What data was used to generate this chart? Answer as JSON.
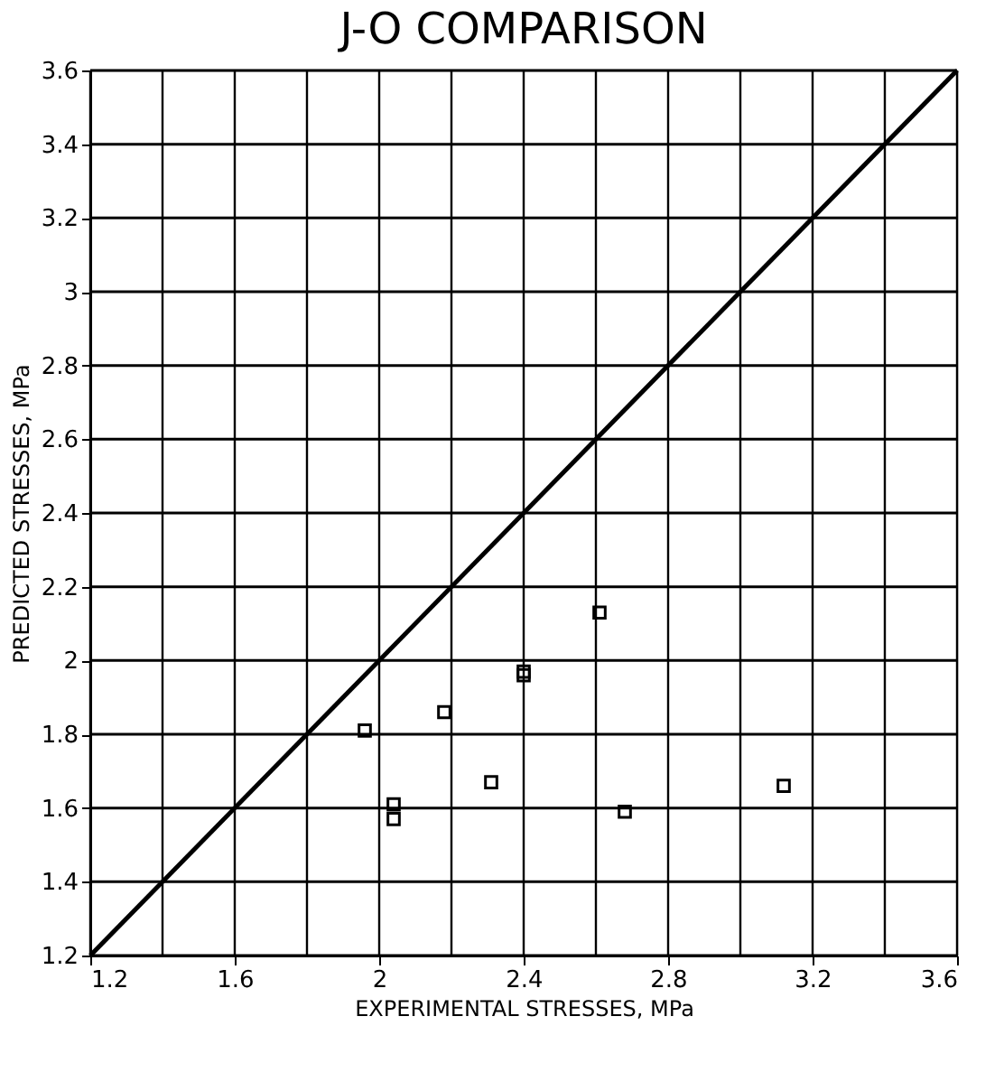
{
  "chart_data": {
    "type": "scatter",
    "title": "J-O COMPARISON",
    "xlabel": "EXPERIMENTAL STRESSES, MPa",
    "ylabel": "PREDICTED STRESSES, MPa",
    "xlim": [
      1.2,
      3.6
    ],
    "ylim": [
      1.2,
      3.6
    ],
    "xticks": [
      1.2,
      1.6,
      2,
      2.4,
      2.8,
      3.2,
      3.6
    ],
    "yticks": [
      1.2,
      1.4,
      1.6,
      1.8,
      2,
      2.2,
      2.4,
      2.6,
      2.8,
      3,
      3.2,
      3.4,
      3.6
    ],
    "grid": true,
    "marker": "square",
    "series": [
      {
        "color": "#000000",
        "x": [
          1.96,
          2.04,
          2.04,
          2.18,
          2.31,
          2.4,
          2.4,
          2.61,
          2.68,
          3.12
        ],
        "values": [
          1.81,
          1.61,
          1.57,
          1.86,
          1.67,
          1.97,
          1.96,
          2.13,
          1.59,
          1.66
        ]
      },
      {
        "type": "line",
        "color": "#000000",
        "x": [
          1.2,
          3.6
        ],
        "values": [
          1.2,
          3.6
        ],
        "line_style": "solid",
        "marker": "none"
      }
    ]
  }
}
